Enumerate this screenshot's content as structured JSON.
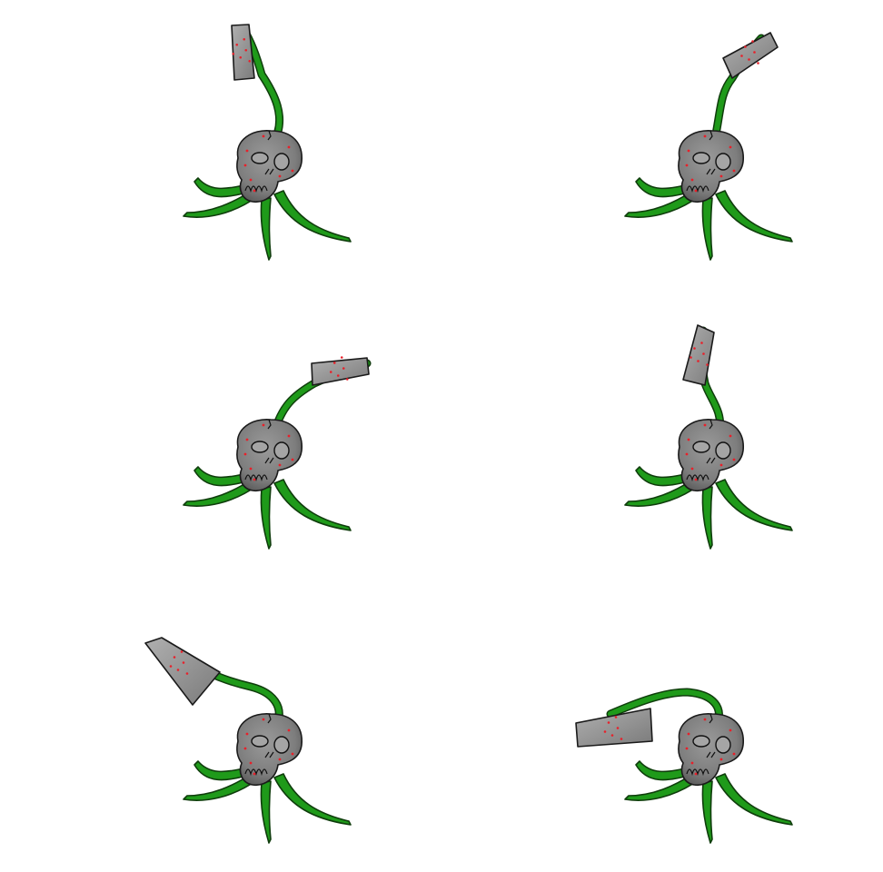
{
  "sheet": {
    "title": "",
    "background": "#ffffff",
    "palette": {
      "vine": "#1f9a1a",
      "vine_outline": "#0f3d0c",
      "skull": "#808080",
      "blade": "#9a9a9a",
      "blood": "#e8202a"
    },
    "sprite_name": "skull-vine-cleaver-creature",
    "frames": [
      {
        "name": "frame-1",
        "pose": "cleaver-raised-up"
      },
      {
        "name": "frame-2",
        "pose": "cleaver-tilted-right"
      },
      {
        "name": "frame-3",
        "pose": "cleaver-swung-right"
      },
      {
        "name": "frame-4",
        "pose": "cleaver-raised-high"
      },
      {
        "name": "frame-5",
        "pose": "cleaver-swung-left"
      },
      {
        "name": "frame-6",
        "pose": "cleaver-extended-left"
      }
    ]
  }
}
